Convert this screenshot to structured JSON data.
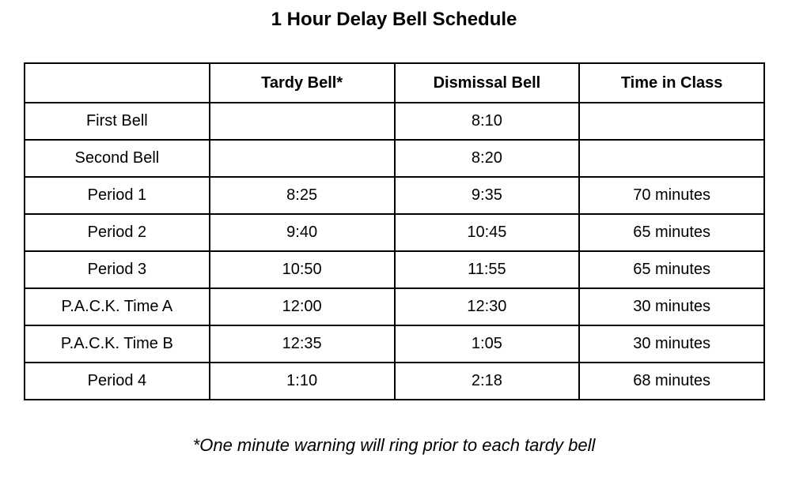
{
  "title": "1 Hour Delay Bell Schedule",
  "table": {
    "headers": [
      "",
      "Tardy Bell*",
      "Dismissal Bell",
      "Time in Class"
    ],
    "rows": [
      {
        "label": "First Bell",
        "tardy": "",
        "dismissal": "8:10",
        "duration": ""
      },
      {
        "label": "Second Bell",
        "tardy": "",
        "dismissal": "8:20",
        "duration": ""
      },
      {
        "label": "Period 1",
        "tardy": "8:25",
        "dismissal": "9:35",
        "duration": "70 minutes"
      },
      {
        "label": "Period 2",
        "tardy": "9:40",
        "dismissal": "10:45",
        "duration": "65 minutes"
      },
      {
        "label": "Period 3",
        "tardy": "10:50",
        "dismissal": "11:55",
        "duration": "65 minutes"
      },
      {
        "label": "P.A.C.K. Time A",
        "tardy": "12:00",
        "dismissal": "12:30",
        "duration": "30 minutes"
      },
      {
        "label": "P.A.C.K. Time B",
        "tardy": "12:35",
        "dismissal": "1:05",
        "duration": "30 minutes"
      },
      {
        "label": "Period 4",
        "tardy": "1:10",
        "dismissal": "2:18",
        "duration": "68 minutes"
      }
    ]
  },
  "footnote": "*One minute warning will ring prior to each tardy bell"
}
